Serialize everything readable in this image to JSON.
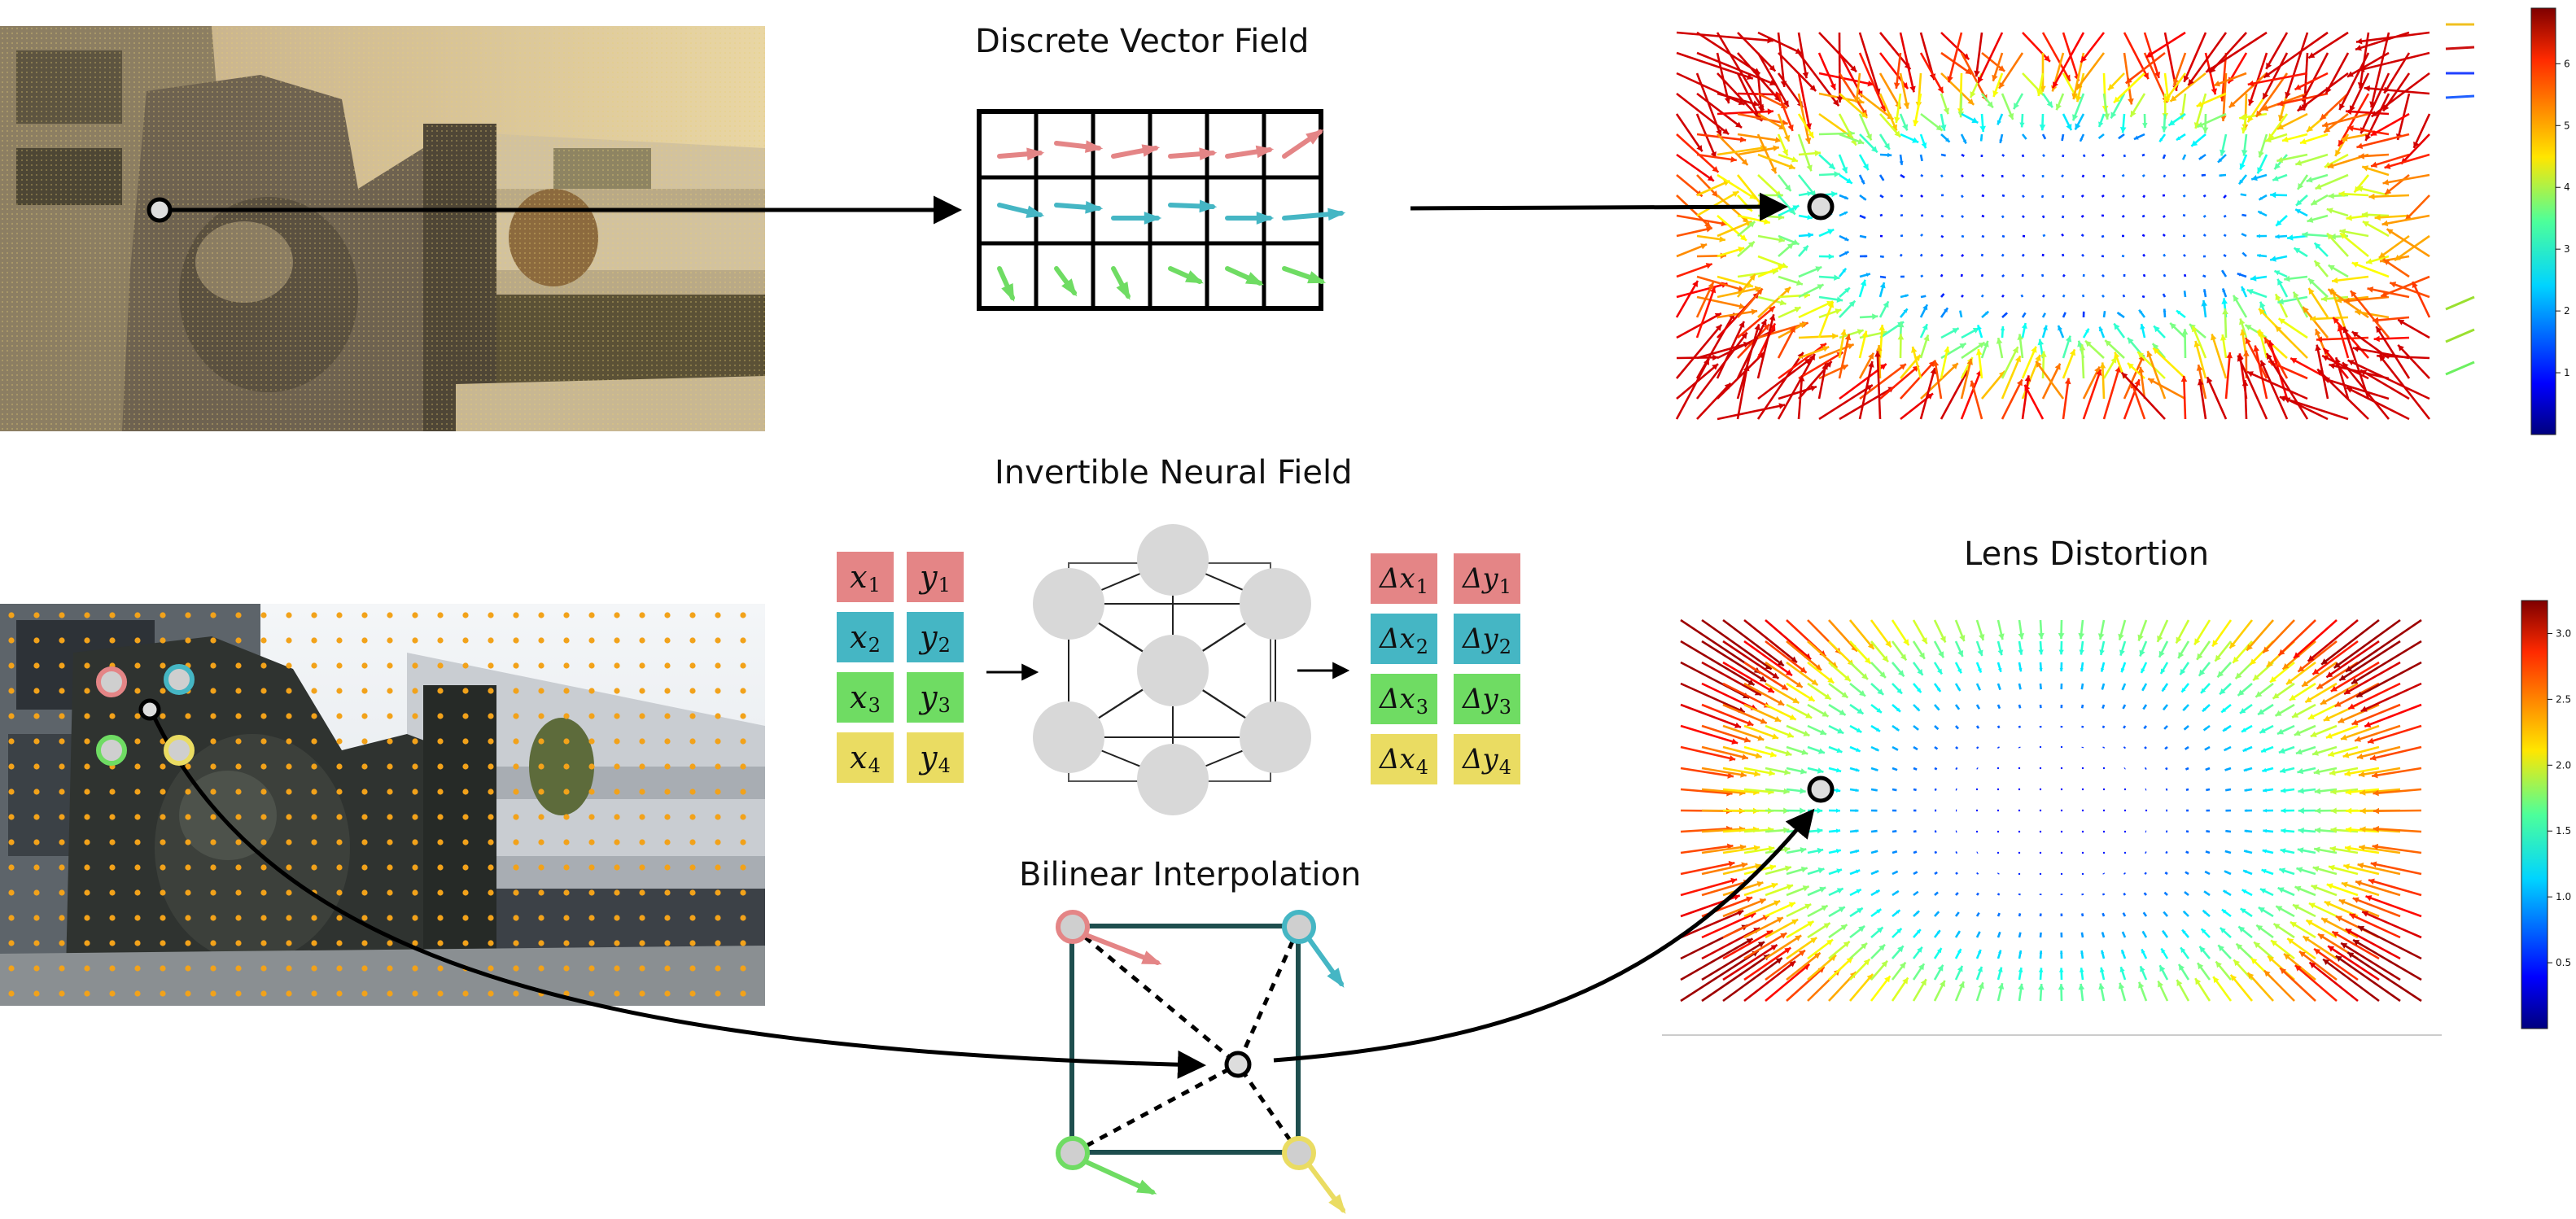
{
  "titles": {
    "discrete": "Discrete Vector Field",
    "invertible": "Invertible Neural Field",
    "bilinear": "Bilinear Interpolation",
    "lens": "Lens Distortion"
  },
  "inputs": [
    {
      "sym": "x",
      "idx": "1",
      "color": "red"
    },
    {
      "sym": "y",
      "idx": "1",
      "color": "red"
    },
    {
      "sym": "x",
      "idx": "2",
      "color": "teal"
    },
    {
      "sym": "y",
      "idx": "2",
      "color": "teal"
    },
    {
      "sym": "x",
      "idx": "3",
      "color": "green"
    },
    {
      "sym": "y",
      "idx": "3",
      "color": "green"
    },
    {
      "sym": "x",
      "idx": "4",
      "color": "yellow"
    },
    {
      "sym": "y",
      "idx": "4",
      "color": "yellow"
    }
  ],
  "outputs": [
    {
      "sym": "Δx",
      "idx": "1",
      "color": "red"
    },
    {
      "sym": "Δy",
      "idx": "1",
      "color": "red"
    },
    {
      "sym": "Δx",
      "idx": "2",
      "color": "teal"
    },
    {
      "sym": "Δy",
      "idx": "2",
      "color": "teal"
    },
    {
      "sym": "Δx",
      "idx": "3",
      "color": "green"
    },
    {
      "sym": "Δy",
      "idx": "3",
      "color": "green"
    },
    {
      "sym": "Δx",
      "idx": "4",
      "color": "yellow"
    },
    {
      "sym": "Δy",
      "idx": "4",
      "color": "yellow"
    }
  ],
  "colorbar_top": {
    "ticks": [
      "1",
      "2",
      "3",
      "4",
      "5",
      "6"
    ]
  },
  "colorbar_bottom": {
    "ticks": [
      "0.5",
      "1.0",
      "1.5",
      "2.0",
      "2.5",
      "3.0"
    ]
  },
  "colors": {
    "red": "#e48586",
    "teal": "#45b6c4",
    "green": "#6fdc63",
    "yellow": "#eadc62",
    "frame": "#1e4e4e"
  }
}
